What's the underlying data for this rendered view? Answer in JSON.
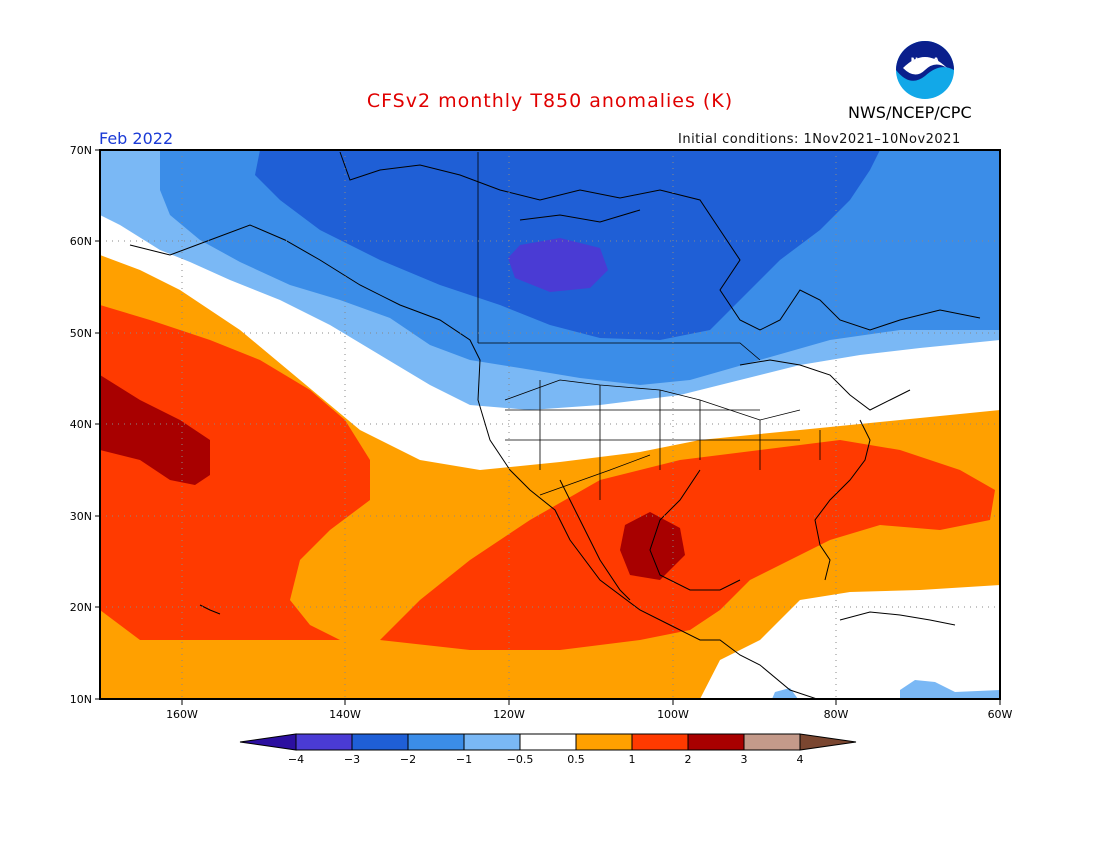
{
  "header": {
    "title": "CFSv2 monthly T850 anomalies (K)",
    "org": "NWS/NCEP/CPC",
    "logo_text": "NOAA",
    "period": "Feb 2022",
    "initial_conditions": "Initial conditions: 1Nov2021–10Nov2021"
  },
  "axes": {
    "lat_labels": [
      "70N",
      "60N",
      "50N",
      "40N",
      "30N",
      "20N",
      "10N"
    ],
    "lon_labels": [
      "160W",
      "140W",
      "120W",
      "100W",
      "80W",
      "60W"
    ]
  },
  "legend": {
    "tick_labels": [
      "−4",
      "−3",
      "−2",
      "−1",
      "−0.5",
      "0.5",
      "1",
      "2",
      "3",
      "4"
    ],
    "colors": [
      "#2c0fa0",
      "#4a3bd4",
      "#1f5fd6",
      "#3b8de8",
      "#7ab8f5",
      "#ffffff",
      "#ffa000",
      "#ff3a00",
      "#a80000",
      "#c49a8a",
      "#7a4630"
    ]
  }
}
